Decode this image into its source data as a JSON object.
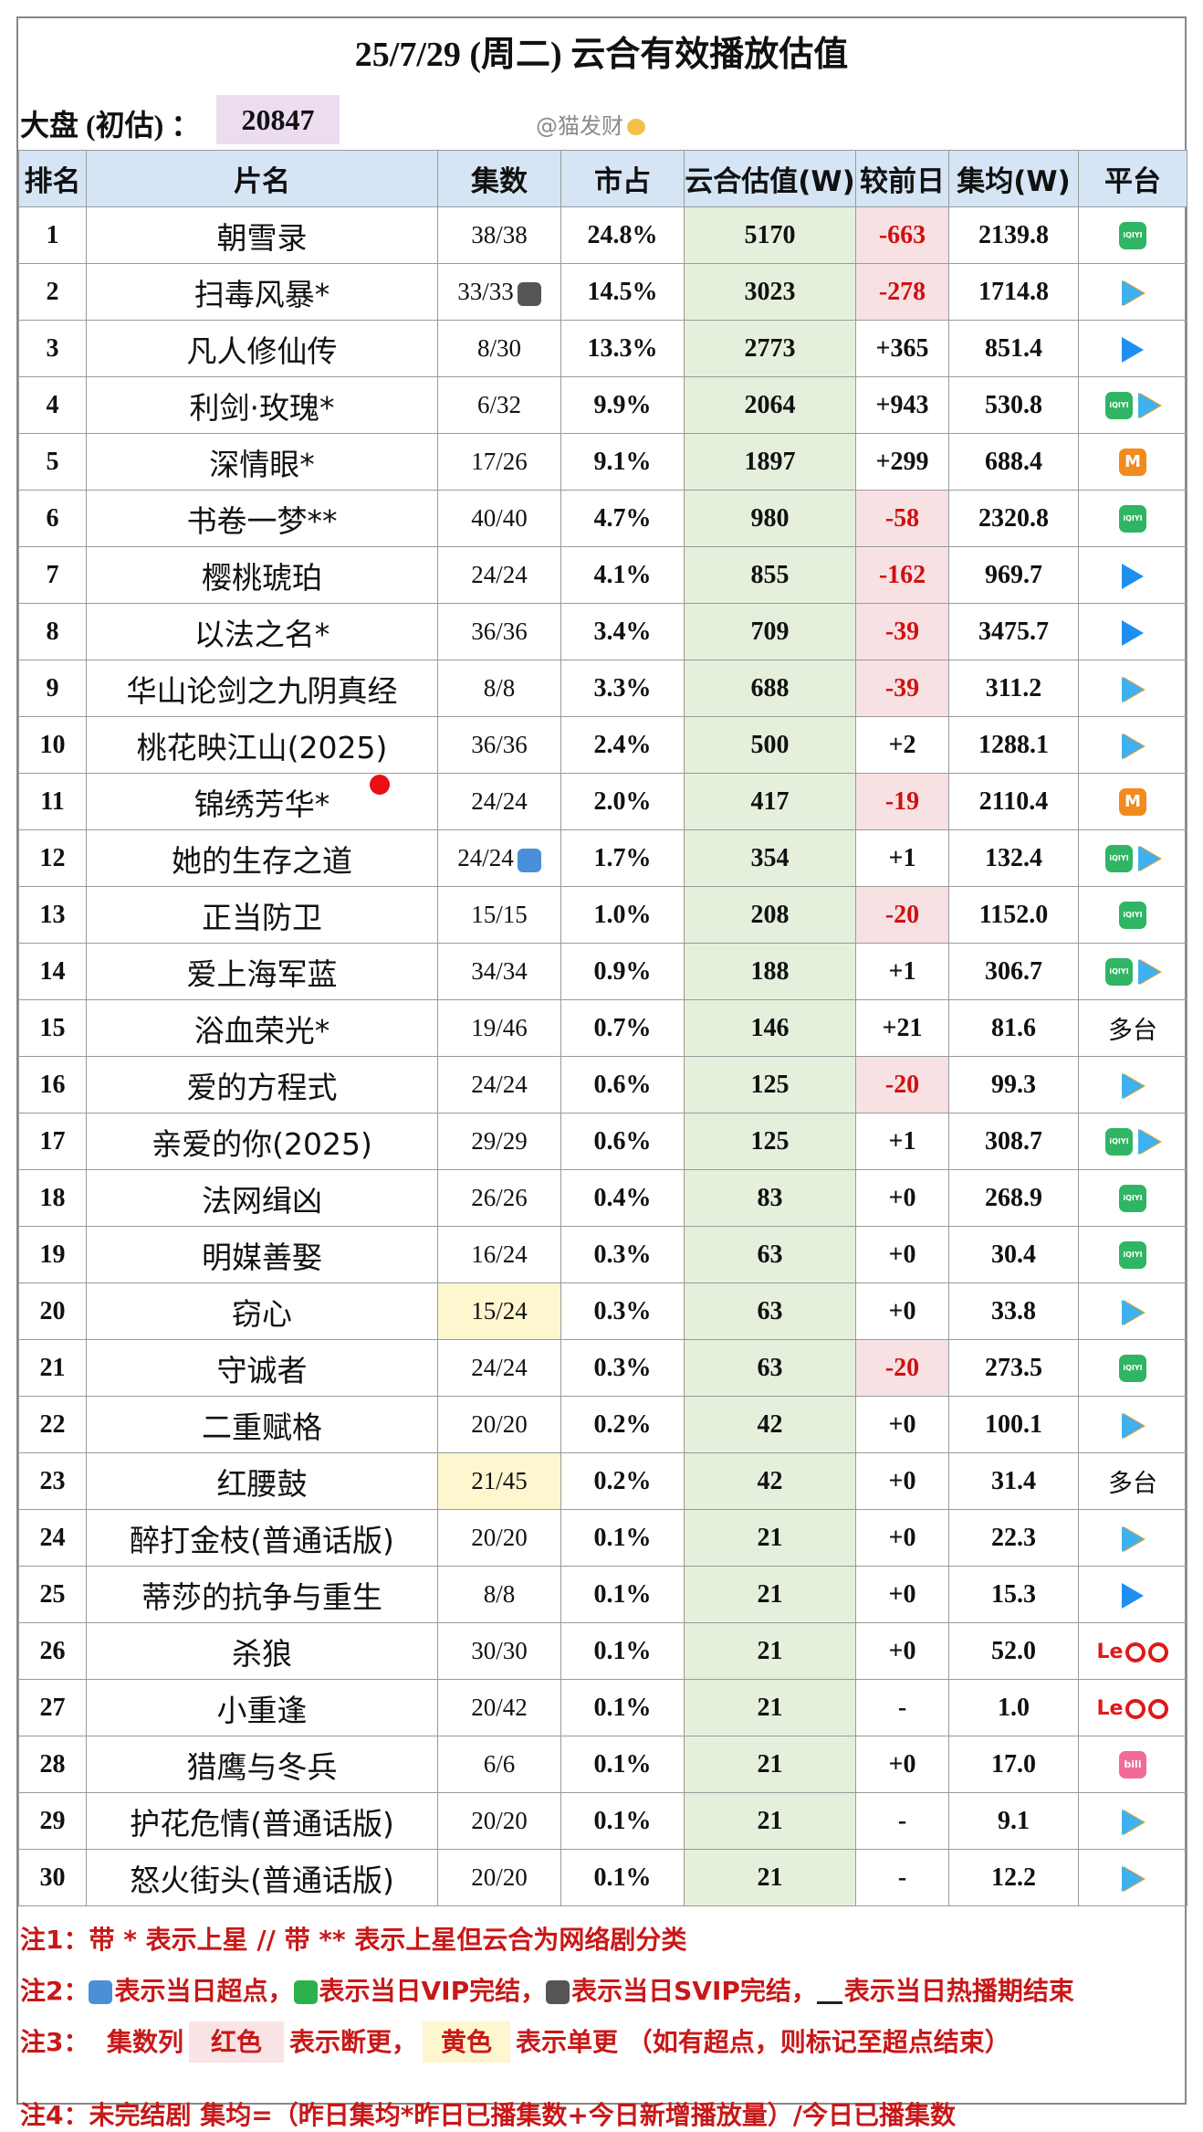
{
  "title": "25/7/29 (周二) 云合有效播放估值",
  "dapan": {
    "label": "大盘 (初估) ：",
    "value": "20847"
  },
  "watermark": "@猫发财",
  "columns": [
    "排名",
    "片名",
    "集数",
    "市占",
    "云合估值(W)",
    "较前日",
    "集均(W)",
    "平台"
  ],
  "rows": [
    {
      "rank": "1",
      "name": "朝雪录",
      "ep": "38/38",
      "tag": "",
      "share": "24.8%",
      "value": "5170",
      "change": "-663",
      "neg": true,
      "avg": "2139.8",
      "platform": [
        "iqiyi"
      ]
    },
    {
      "rank": "2",
      "name": "扫毒风暴*",
      "ep": "33/33",
      "tag": "svip",
      "share": "14.5%",
      "value": "3023",
      "change": "-278",
      "neg": true,
      "avg": "1714.8",
      "platform": [
        "tencent"
      ]
    },
    {
      "rank": "3",
      "name": "凡人修仙传",
      "ep": "8/30",
      "tag": "",
      "share": "13.3%",
      "value": "2773",
      "change": "+365",
      "neg": false,
      "avg": "851.4",
      "platform": [
        "youku"
      ]
    },
    {
      "rank": "4",
      "name": "利剑·玫瑰*",
      "ep": "6/32",
      "tag": "",
      "share": "9.9%",
      "value": "2064",
      "change": "+943",
      "neg": false,
      "avg": "530.8",
      "platform": [
        "iqiyi",
        "tencent"
      ]
    },
    {
      "rank": "5",
      "name": "深情眼*",
      "ep": "17/26",
      "tag": "",
      "share": "9.1%",
      "value": "1897",
      "change": "+299",
      "neg": false,
      "avg": "688.4",
      "platform": [
        "mango"
      ]
    },
    {
      "rank": "6",
      "name": "书卷一梦**",
      "ep": "40/40",
      "tag": "",
      "share": "4.7%",
      "value": "980",
      "change": "-58",
      "neg": true,
      "avg": "2320.8",
      "platform": [
        "iqiyi"
      ]
    },
    {
      "rank": "7",
      "name": "樱桃琥珀",
      "ep": "24/24",
      "tag": "",
      "share": "4.1%",
      "value": "855",
      "change": "-162",
      "neg": true,
      "avg": "969.7",
      "platform": [
        "youku"
      ]
    },
    {
      "rank": "8",
      "name": "以法之名*",
      "ep": "36/36",
      "tag": "",
      "share": "3.4%",
      "value": "709",
      "change": "-39",
      "neg": true,
      "avg": "3475.7",
      "platform": [
        "youku"
      ]
    },
    {
      "rank": "9",
      "name": "华山论剑之九阴真经",
      "ep": "8/8",
      "tag": "",
      "share": "3.3%",
      "value": "688",
      "change": "-39",
      "neg": true,
      "avg": "311.2",
      "platform": [
        "tencent"
      ]
    },
    {
      "rank": "10",
      "name": "桃花映江山(2025)",
      "ep": "36/36",
      "tag": "",
      "share": "2.4%",
      "value": "500",
      "change": "+2",
      "neg": false,
      "avg": "1288.1",
      "platform": [
        "tencent"
      ]
    },
    {
      "rank": "11",
      "name": "锦绣芳华*",
      "ep": "24/24",
      "tag": "",
      "share": "2.0%",
      "value": "417",
      "change": "-19",
      "neg": true,
      "avg": "2110.4",
      "platform": [
        "mango"
      ]
    },
    {
      "rank": "12",
      "name": "她的生存之道",
      "ep": "24/24",
      "tag": "ff",
      "share": "1.7%",
      "value": "354",
      "change": "+1",
      "neg": false,
      "avg": "132.4",
      "platform": [
        "iqiyi",
        "tencent"
      ]
    },
    {
      "rank": "13",
      "name": "正当防卫",
      "ep": "15/15",
      "tag": "",
      "share": "1.0%",
      "value": "208",
      "change": "-20",
      "neg": true,
      "avg": "1152.0",
      "platform": [
        "iqiyi"
      ]
    },
    {
      "rank": "14",
      "name": "爱上海军蓝",
      "ep": "34/34",
      "tag": "",
      "share": "0.9%",
      "value": "188",
      "change": "+1",
      "neg": false,
      "avg": "306.7",
      "platform": [
        "iqiyi",
        "tencent"
      ]
    },
    {
      "rank": "15",
      "name": "浴血荣光*",
      "ep": "19/46",
      "tag": "",
      "share": "0.7%",
      "value": "146",
      "change": "+21",
      "neg": false,
      "avg": "81.6",
      "platform": [
        "多台"
      ]
    },
    {
      "rank": "16",
      "name": "爱的方程式",
      "ep": "24/24",
      "tag": "",
      "share": "0.6%",
      "value": "125",
      "change": "-20",
      "neg": true,
      "avg": "99.3",
      "platform": [
        "tencent"
      ]
    },
    {
      "rank": "17",
      "name": "亲爱的你(2025)",
      "ep": "29/29",
      "tag": "",
      "share": "0.6%",
      "value": "125",
      "change": "+1",
      "neg": false,
      "avg": "308.7",
      "platform": [
        "iqiyi",
        "tencent"
      ]
    },
    {
      "rank": "18",
      "name": "法网缉凶",
      "ep": "26/26",
      "tag": "",
      "share": "0.4%",
      "value": "83",
      "change": "+0",
      "neg": false,
      "avg": "268.9",
      "platform": [
        "iqiyi"
      ]
    },
    {
      "rank": "19",
      "name": "明媒善娶",
      "ep": "16/24",
      "tag": "",
      "share": "0.3%",
      "value": "63",
      "change": "+0",
      "neg": false,
      "avg": "30.4",
      "platform": [
        "iqiyi"
      ]
    },
    {
      "rank": "20",
      "name": "窃心",
      "ep": "15/24",
      "tag": "",
      "yellow": true,
      "share": "0.3%",
      "value": "63",
      "change": "+0",
      "neg": false,
      "avg": "33.8",
      "platform": [
        "tencent"
      ]
    },
    {
      "rank": "21",
      "name": "守诚者",
      "ep": "24/24",
      "tag": "",
      "share": "0.3%",
      "value": "63",
      "change": "-20",
      "neg": true,
      "avg": "273.5",
      "platform": [
        "iqiyi"
      ]
    },
    {
      "rank": "22",
      "name": "二重赋格",
      "ep": "20/20",
      "tag": "",
      "share": "0.2%",
      "value": "42",
      "change": "+0",
      "neg": false,
      "avg": "100.1",
      "platform": [
        "tencent"
      ]
    },
    {
      "rank": "23",
      "name": "红腰鼓",
      "ep": "21/45",
      "tag": "",
      "yellow": true,
      "share": "0.2%",
      "value": "42",
      "change": "+0",
      "neg": false,
      "avg": "31.4",
      "platform": [
        "多台"
      ]
    },
    {
      "rank": "24",
      "name": "醉打金枝(普通话版)",
      "ep": "20/20",
      "tag": "",
      "share": "0.1%",
      "value": "21",
      "change": "+0",
      "neg": false,
      "avg": "22.3",
      "platform": [
        "tencent"
      ]
    },
    {
      "rank": "25",
      "name": "蒂莎的抗争与重生",
      "ep": "8/8",
      "tag": "",
      "share": "0.1%",
      "value": "21",
      "change": "+0",
      "neg": false,
      "avg": "15.3",
      "platform": [
        "youku"
      ]
    },
    {
      "rank": "26",
      "name": "杀狼",
      "ep": "30/30",
      "tag": "",
      "share": "0.1%",
      "value": "21",
      "change": "+0",
      "neg": false,
      "avg": "52.0",
      "platform": [
        "letv"
      ]
    },
    {
      "rank": "27",
      "name": "小重逢",
      "ep": "20/42",
      "tag": "",
      "share": "0.1%",
      "value": "21",
      "change": "-",
      "neg": false,
      "avg": "1.0",
      "platform": [
        "letv"
      ]
    },
    {
      "rank": "28",
      "name": "猎鹰与冬兵",
      "ep": "6/6",
      "tag": "",
      "share": "0.1%",
      "value": "21",
      "change": "+0",
      "neg": false,
      "avg": "17.0",
      "platform": [
        "bilibili"
      ]
    },
    {
      "rank": "29",
      "name": "护花危情(普通话版)",
      "ep": "20/20",
      "tag": "",
      "share": "0.1%",
      "value": "21",
      "change": "-",
      "neg": false,
      "avg": "9.1",
      "platform": [
        "tencent"
      ]
    },
    {
      "rank": "30",
      "name": "怒火街头(普通话版)",
      "ep": "20/20",
      "tag": "",
      "share": "0.1%",
      "value": "21",
      "change": "-",
      "neg": false,
      "avg": "12.2",
      "platform": [
        "tencent"
      ]
    }
  ],
  "notes": {
    "n1": "注1：带 * 表示上星 // 带 ** 表示上星但云合为网络剧分类",
    "n2_prefix": "注2：",
    "n2_a": "表示当日超点，",
    "n2_b": "表示当日VIP完结，",
    "n2_c": "表示当日SVIP完结，",
    "n2_d": "表示当日热播期结束",
    "n3_prefix": "注3：",
    "n3_col": "集数列",
    "n3_red": "红色",
    "n3_mid": "表示断更，",
    "n3_yel": "黄色",
    "n3_end": "表示单更 （如有超点，则标记至超点结束）",
    "n4": "注4：未完结剧 集均=（昨日集均*昨日已播集数+今日新增播放量）/今日已播集数"
  },
  "colors": {
    "header_bg": "#d6e5f5",
    "value_bg": "#e4f0dc",
    "neg_bg": "#f7e1e3",
    "neg_text": "#d01010",
    "yellow_bg": "#fdf6cf",
    "note_red": "#c81818"
  }
}
